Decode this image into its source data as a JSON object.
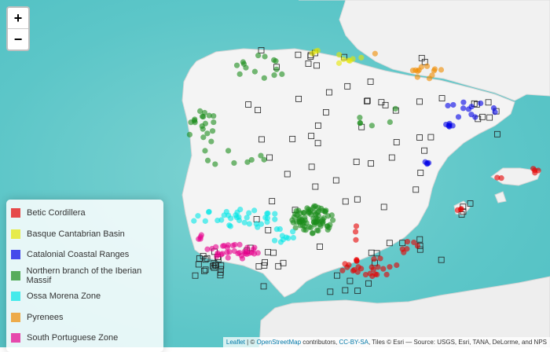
{
  "zoom": {
    "in": "+",
    "out": "−"
  },
  "legend": [
    {
      "name": "Betic Cordillera",
      "color": "#e60000"
    },
    {
      "name": "Basque Cantabrian Basin",
      "color": "#e6e600"
    },
    {
      "name": "Catalonial Coastal Ranges",
      "color": "#0000e6"
    },
    {
      "name": "Northern branch of the Iberian Massif",
      "color": "#1a8c1a"
    },
    {
      "name": "Ossa Morena Zone",
      "color": "#00e6e6"
    },
    {
      "name": "Pyrenees",
      "color": "#f08c00"
    },
    {
      "name": "South Portuguese Zone",
      "color": "#e6008c"
    }
  ],
  "attribution": {
    "leaflet": "Leaflet",
    "sep": " | © ",
    "osm": "OpenStreetMap",
    "contrib": " contributors, ",
    "license": "CC-BY-SA",
    "tiles": ", Tiles © Esri — Source: USGS, Esri, TANA, DeLorme, and NPS"
  }
}
